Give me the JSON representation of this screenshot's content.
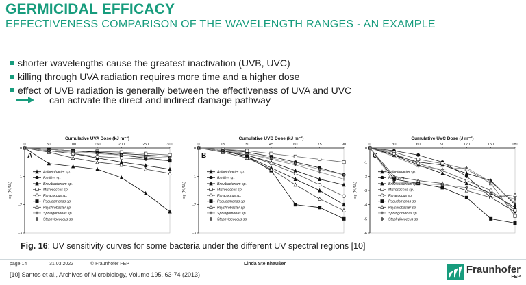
{
  "header": {
    "title": "GERMICIDAL EFFICACY",
    "subtitle": "EFFECTIVENESS COMPARISON OF THE WAVELENGTH RANGES - AN EXAMPLE"
  },
  "bullets": [
    "shorter wavelengths cause the greatest inactivation (UVB, UVC)",
    "killing through UVA radiation requires more time and a higher dose",
    "effect of UVB radiation is generally between the effectiveness of UVA and UVC"
  ],
  "arrow_text": "can activate the direct and indirect damage pathway",
  "colors": {
    "accent": "#179c7d",
    "text": "#222222"
  },
  "species": [
    "Acinetobacter sp.",
    "Bacillus sp.",
    "Brevibacterium sp.",
    "Micrococcus sp.",
    "Paracoccus sp.",
    "Pseudomonas sp.",
    "Psychrobacter sp.",
    "Sphingomonas sp.",
    "Staphylococcus sp."
  ],
  "chart_data": [
    {
      "type": "line",
      "panel": "A",
      "title": "Cumulative UVA Dose (kJ m⁻²)",
      "ylabel": "log (Nₜ/N₀)",
      "x": [
        0,
        50,
        100,
        150,
        200,
        250,
        300
      ],
      "xlim": [
        0,
        300
      ],
      "ylim": [
        -3,
        0
      ],
      "series": [
        {
          "name": "Acinetobacter sp.",
          "values": [
            0,
            -0.1,
            -0.2,
            -0.35,
            -0.5,
            -0.62,
            -0.75
          ]
        },
        {
          "name": "Bacillus sp.",
          "values": [
            0,
            -0.05,
            -0.1,
            -0.15,
            -0.2,
            -0.25,
            -0.3
          ]
        },
        {
          "name": "Brevibacterium sp.",
          "values": [
            0,
            -0.55,
            -0.65,
            -0.75,
            -1.05,
            -1.6,
            -2.25
          ]
        },
        {
          "name": "Micrococcus sp.",
          "values": [
            0,
            -0.05,
            -0.1,
            -0.12,
            -0.15,
            -0.2,
            -0.25
          ]
        },
        {
          "name": "Paracoccus sp.",
          "values": [
            0,
            -0.1,
            -0.2,
            -0.3,
            -0.35,
            -0.4,
            -0.45
          ]
        },
        {
          "name": "Pseudomonas sp.",
          "values": [
            0,
            -0.05,
            -0.1,
            -0.15,
            -0.25,
            -0.35,
            -0.45
          ]
        },
        {
          "name": "Psychrobacter sp.",
          "values": [
            0,
            -0.15,
            -0.35,
            -0.5,
            -0.6,
            -0.75,
            -0.9
          ]
        },
        {
          "name": "Sphingomonas sp.",
          "values": [
            0,
            -0.05,
            -0.1,
            -0.2,
            -0.25,
            -0.3,
            -0.35
          ]
        },
        {
          "name": "Staphylococcus sp.",
          "values": [
            0,
            -0.1,
            -0.15,
            -0.2,
            -0.25,
            -0.3,
            -0.35
          ]
        }
      ]
    },
    {
      "type": "line",
      "panel": "B",
      "title": "Cumulative UVB Dose (kJ m⁻²)",
      "ylabel": "log (Nₜ/N₀)",
      "x": [
        0,
        15,
        30,
        45,
        60,
        75,
        90
      ],
      "xlim": [
        0,
        90
      ],
      "ylim": [
        -3,
        0
      ],
      "series": [
        {
          "name": "Acinetobacter sp.",
          "values": [
            0,
            -0.1,
            -0.25,
            -0.5,
            -0.8,
            -1.1,
            -1.3
          ]
        },
        {
          "name": "Bacillus sp.",
          "values": [
            0,
            -0.05,
            -0.15,
            -0.3,
            -0.5,
            -0.7,
            -0.95
          ]
        },
        {
          "name": "Brevibacterium sp.",
          "values": [
            0,
            -0.1,
            -0.3,
            -0.7,
            -1.1,
            -1.5,
            -2.0
          ]
        },
        {
          "name": "Micrococcus sp.",
          "values": [
            0,
            -0.05,
            -0.1,
            -0.2,
            -0.3,
            -0.4,
            -0.5
          ]
        },
        {
          "name": "Paracoccus sp.",
          "values": [
            0,
            -0.1,
            -0.25,
            -0.55,
            -0.9,
            -1.3,
            -1.7
          ]
        },
        {
          "name": "Pseudomonas sp.",
          "values": [
            0,
            -0.1,
            -0.3,
            -0.8,
            -2.0,
            -2.1,
            -2.5
          ]
        },
        {
          "name": "Psychrobacter sp.",
          "values": [
            0,
            -0.15,
            -0.35,
            -0.75,
            -1.3,
            -1.8,
            -2.2
          ]
        },
        {
          "name": "Sphingomonas sp.",
          "values": [
            0,
            -0.05,
            -0.2,
            -0.4,
            -0.6,
            -0.85,
            -1.1
          ]
        },
        {
          "name": "Staphylococcus sp.",
          "values": [
            0,
            -0.1,
            -0.2,
            -0.35,
            -0.55,
            -0.75,
            -0.95
          ]
        }
      ]
    },
    {
      "type": "line",
      "panel": "C",
      "title": "Cumulative UVC Dose (J m⁻²)",
      "ylabel": "log (Nₜ/N₀)",
      "x": [
        0,
        30,
        60,
        90,
        120,
        150,
        180
      ],
      "xlim": [
        0,
        180
      ],
      "ylim": [
        -6,
        0
      ],
      "series": [
        {
          "name": "Acinetobacter sp.",
          "values": [
            0,
            -0.5,
            -1.2,
            -1.8,
            -2.5,
            -3.2,
            -4.2
          ]
        },
        {
          "name": "Bacillus sp.",
          "values": [
            0,
            -0.2,
            -0.5,
            -1.0,
            -2.0,
            -3.5,
            -4.5
          ]
        },
        {
          "name": "Brevibacterium sp.",
          "values": [
            0,
            -0.5,
            -1.0,
            -1.2,
            -1.8,
            -2.3,
            -4.0
          ]
        },
        {
          "name": "Micrococcus sp.",
          "values": [
            0,
            -0.3,
            -0.8,
            -1.1,
            -1.5,
            -2.5,
            -4.8
          ]
        },
        {
          "name": "Paracoccus sp.",
          "values": [
            0,
            -0.4,
            -1.1,
            -1.6,
            -2.3,
            -3.0,
            -4.4
          ]
        },
        {
          "name": "Pseudomonas sp.",
          "values": [
            0,
            -2.2,
            -2.5,
            -2.8,
            -3.5,
            -5.0,
            -5.3
          ]
        },
        {
          "name": "Psychrobacter sp.",
          "values": [
            0,
            -2.0,
            -2.3,
            -2.5,
            -3.0,
            -3.5,
            -3.3
          ]
        },
        {
          "name": "Sphingomonas sp.",
          "values": [
            0,
            -0.6,
            -1.3,
            -1.5,
            -1.4,
            -2.4,
            -3.9
          ]
        },
        {
          "name": "Staphylococcus sp.",
          "values": [
            0,
            -2.4,
            -2.5,
            -2.6,
            -2.8,
            -3.2,
            -3.6
          ]
        }
      ]
    }
  ],
  "caption": {
    "label": "Fig. 16",
    "text": ":  UV sensitivity curves for some bacteria under the different UV spectral regions [10]"
  },
  "footer": {
    "page": "page 14",
    "date": "31.03.2022",
    "copyright": "© Fraunhofer FEP",
    "author": "Linda Steinhäußer",
    "reference": "[10] Santos et al., Archives of Microbiology, Volume 195, 63-74 (2013)"
  },
  "logo": {
    "name": "Fraunhofer",
    "sub": "FEP"
  }
}
